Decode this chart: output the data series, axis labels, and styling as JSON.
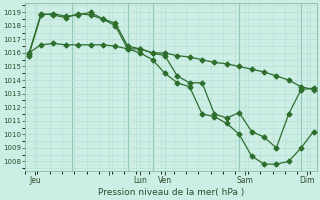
{
  "xlabel": "Pression niveau de la mer( hPa )",
  "bg_color": "#cceee4",
  "grid_color_minor": "#b8ddd4",
  "grid_color_major": "#90c8b8",
  "line_color": "#2d6e2d",
  "ylim": [
    1007.3,
    1019.7
  ],
  "yticks": [
    1008,
    1009,
    1010,
    1011,
    1012,
    1013,
    1014,
    1015,
    1016,
    1017,
    1018,
    1019
  ],
  "xlim": [
    -0.3,
    23.3
  ],
  "xtick_positions": [
    0.5,
    6.5,
    9.0,
    11.0,
    17.5,
    22.5
  ],
  "xtick_labels": [
    "Jeu",
    "",
    "Lun",
    "Ven",
    "Sam",
    "Dim"
  ],
  "vlines": [
    3.5,
    8.0,
    10.0,
    17.0,
    22.0
  ],
  "series1_x": [
    0,
    1,
    2,
    3,
    4,
    5,
    6,
    7,
    8,
    9,
    10,
    11,
    12,
    13,
    14,
    15,
    16,
    17,
    18,
    19,
    20,
    21,
    22,
    23
  ],
  "series1_y": [
    1016.0,
    1016.6,
    1016.7,
    1016.6,
    1016.6,
    1016.6,
    1016.6,
    1016.5,
    1016.3,
    1016.3,
    1016.0,
    1016.0,
    1015.8,
    1015.7,
    1015.5,
    1015.3,
    1015.2,
    1015.0,
    1014.8,
    1014.6,
    1014.3,
    1014.0,
    1013.5,
    1013.3
  ],
  "series2_x": [
    0,
    1,
    2,
    3,
    4,
    5,
    6,
    7,
    8,
    9,
    10,
    11,
    12,
    13,
    14,
    15,
    16,
    17,
    18,
    19,
    20,
    21,
    22,
    23
  ],
  "series2_y": [
    1015.9,
    1018.9,
    1018.8,
    1018.6,
    1018.9,
    1018.8,
    1018.5,
    1018.2,
    1016.5,
    1016.3,
    1016.0,
    1015.8,
    1014.3,
    1013.8,
    1013.8,
    1011.5,
    1011.2,
    1011.6,
    1010.2,
    1009.8,
    1009.0,
    1011.5,
    1013.3,
    1013.4
  ],
  "series3_x": [
    0,
    1,
    2,
    3,
    4,
    5,
    6,
    7,
    8,
    9,
    10,
    11,
    12,
    13,
    14,
    15,
    16,
    17,
    18,
    19,
    20,
    21,
    22,
    23
  ],
  "series3_y": [
    1015.8,
    1018.8,
    1018.9,
    1018.7,
    1018.8,
    1019.0,
    1018.5,
    1018.0,
    1016.3,
    1016.0,
    1015.5,
    1014.5,
    1013.8,
    1013.5,
    1011.5,
    1011.3,
    1010.8,
    1010.0,
    1008.4,
    1007.8,
    1007.8,
    1008.0,
    1009.0,
    1010.2
  ]
}
